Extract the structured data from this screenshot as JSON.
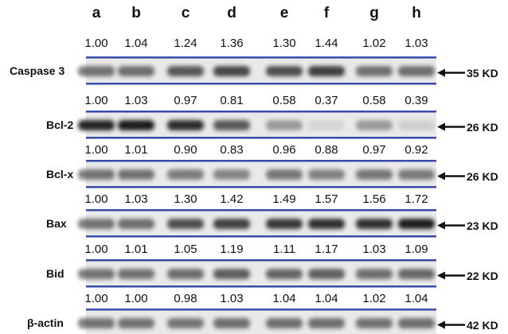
{
  "lanes": [
    "a",
    "b",
    "c",
    "d",
    "e",
    "f",
    "g",
    "h"
  ],
  "blots": [
    {
      "protein": "Caspase 3",
      "marker": "35 KD",
      "ratios": [
        "1.00",
        "1.04",
        "1.24",
        "1.36",
        "1.30",
        "1.44",
        "1.02",
        "1.03"
      ]
    },
    {
      "protein": "Bcl-2",
      "marker": "26 KD",
      "ratios": [
        "1.00",
        "1.03",
        "0.97",
        "0.81",
        "0.58",
        "0.37",
        "0.58",
        "0.39"
      ]
    },
    {
      "protein": "Bcl-x",
      "marker": "26 KD",
      "ratios": [
        "1.00",
        "1.01",
        "0.90",
        "0.83",
        "0.96",
        "0.88",
        "0.97",
        "0.92"
      ]
    },
    {
      "protein": "Bax",
      "marker": "23 KD",
      "ratios": [
        "1.00",
        "1.03",
        "1.30",
        "1.42",
        "1.49",
        "1.57",
        "1.56",
        "1.72"
      ]
    },
    {
      "protein": "Bid",
      "marker": "22 KD",
      "ratios": [
        "1.00",
        "1.01",
        "1.05",
        "1.19",
        "1.11",
        "1.17",
        "1.03",
        "1.09"
      ]
    },
    {
      "protein": "β-actin",
      "marker": "42 KD",
      "ratios": [
        "1.00",
        "1.00",
        "0.98",
        "1.03",
        "1.04",
        "1.04",
        "1.02",
        "1.04"
      ]
    }
  ],
  "colors": {
    "frame": "#3b49a8",
    "band": "#141414",
    "text": "#111111"
  }
}
